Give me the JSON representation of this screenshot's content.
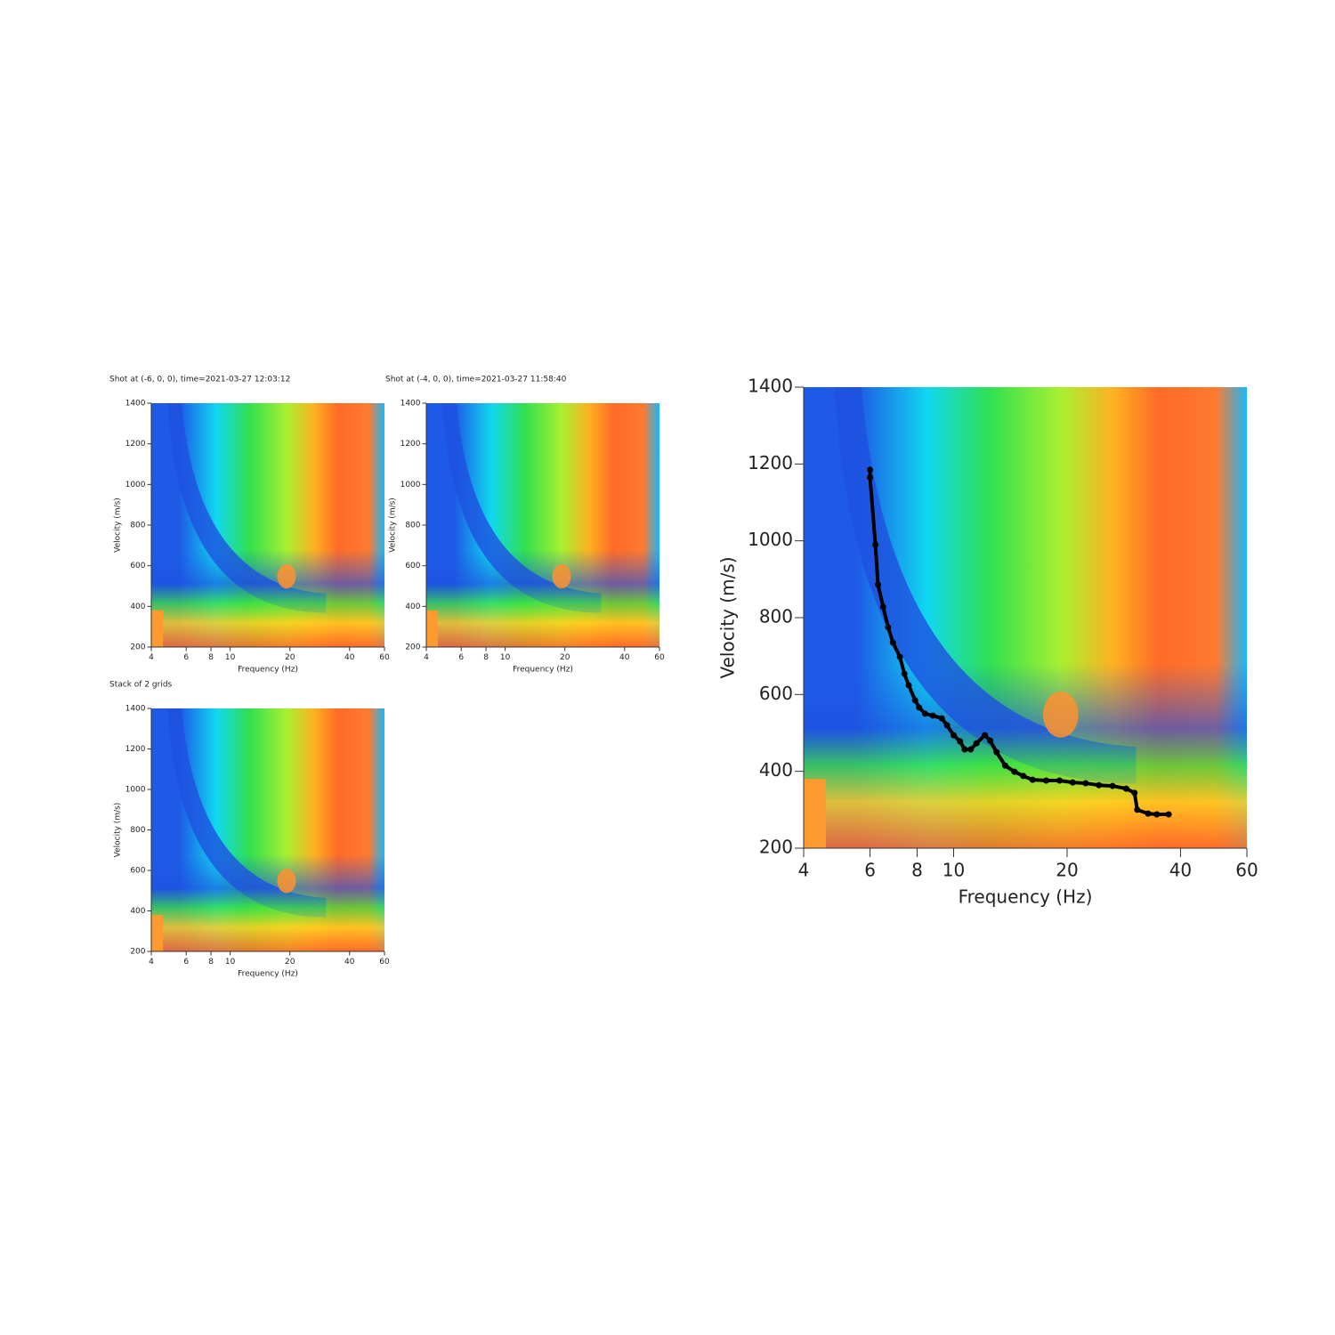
{
  "chart_data": [
    {
      "type": "heatmap",
      "title": "Shot at (-6, 0, 0), time=2021-03-27 12:03:12",
      "x_label": "Frequency (Hz)",
      "y_label": "Velocity (m/s)",
      "x_scale": "log",
      "xlim": [
        4,
        60
      ],
      "ylim": [
        200,
        1400
      ],
      "xticks": [
        4,
        6,
        8,
        10,
        20,
        40,
        60
      ],
      "yticks": [
        200,
        400,
        600,
        800,
        1000,
        1200,
        1400
      ]
    },
    {
      "type": "heatmap",
      "title": "Shot at (-4, 0, 0), time=2021-03-27 11:58:40",
      "x_label": "Frequency (Hz)",
      "y_label": "Velocity (m/s)",
      "x_scale": "log",
      "xlim": [
        4,
        60
      ],
      "ylim": [
        200,
        1400
      ],
      "xticks": [
        4,
        6,
        8,
        10,
        20,
        40,
        60
      ],
      "yticks": [
        200,
        400,
        600,
        800,
        1000,
        1200,
        1400
      ]
    },
    {
      "type": "heatmap",
      "title": "Stack of 2 grids",
      "x_label": "Frequency (Hz)",
      "y_label": "Velocity (m/s)",
      "x_scale": "log",
      "xlim": [
        4,
        60
      ],
      "ylim": [
        200,
        1400
      ],
      "xticks": [
        4,
        6,
        8,
        10,
        20,
        40,
        60
      ],
      "yticks": [
        200,
        400,
        600,
        800,
        1000,
        1200,
        1400
      ]
    },
    {
      "type": "line",
      "x_label": "Frequency (Hz)",
      "y_label": "Velocity (m/s)",
      "x_scale": "log",
      "xlim": [
        4,
        60
      ],
      "ylim": [
        200,
        1400
      ],
      "xticks": [
        4,
        6,
        8,
        10,
        20,
        40,
        60
      ],
      "yticks": [
        200,
        400,
        600,
        800,
        1000,
        1200,
        1400
      ],
      "series": [
        {
          "color": "#000000",
          "x": [
            6.0,
            6.0,
            6.2,
            6.3,
            6.5,
            6.7,
            6.9,
            7.2,
            7.4,
            7.6,
            7.9,
            8.1,
            8.4,
            8.8,
            9.3,
            9.6,
            10.0,
            10.4,
            10.7,
            11.1,
            11.5,
            12.1,
            12.5,
            13.0,
            13.7,
            14.5,
            15.3,
            16.2,
            17.6,
            19.1,
            20.7,
            22.4,
            24.3,
            26.4,
            28.7,
            30.2,
            30.7,
            32.8,
            34.6,
            37.2
          ],
          "values": [
            1185,
            1165,
            990,
            886,
            828,
            775,
            735,
            698,
            654,
            624,
            585,
            566,
            550,
            545,
            538,
            520,
            494,
            478,
            457,
            457,
            473,
            494,
            480,
            450,
            415,
            399,
            388,
            378,
            376,
            376,
            371,
            369,
            364,
            362,
            355,
            344,
            300,
            290,
            288,
            288
          ]
        }
      ]
    }
  ]
}
